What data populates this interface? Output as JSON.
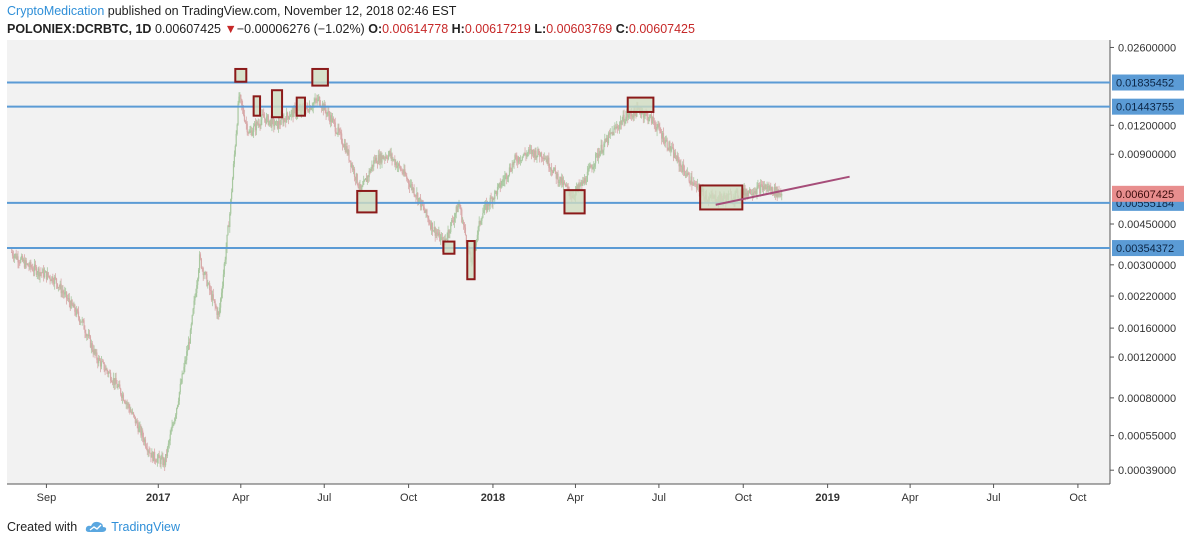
{
  "header": {
    "author": "CryptoMedication",
    "published": " published on TradingView.com, November 12, 2018 02:46 EST",
    "symbol": "POLONIEX:DCRBTC, 1D",
    "last": "0.00607425",
    "down_arrow": "▼",
    "change": "−0.00006276 (−1.02%)",
    "o_label": "O:",
    "o_value": "0.00614778",
    "h_label": "H:",
    "h_value": "0.00617219",
    "l_label": "L:",
    "l_value": "0.00603769",
    "c_label": "C:",
    "c_value": "0.00607425"
  },
  "footer": {
    "created_with": "Created with",
    "brand": "TradingView",
    "logo_icon": "tradingview-cloud-icon"
  },
  "colors": {
    "plot_bg": "#f2f2f2",
    "level_line": "#5b9bd5",
    "box_stroke": "#8b1a1a",
    "box_fill": "#cfdcc0",
    "trend_line": "#a64d79",
    "candle_up": "#a8c8a0",
    "candle_down": "#d8a8a8",
    "last_price_badge": "#e88e8e"
  },
  "chart_data": {
    "type": "candlestick",
    "scale": "log",
    "y_ticks": [
      "0.02600000",
      "0.01200000",
      "0.00900000",
      "0.00450000",
      "0.00300000",
      "0.00220000",
      "0.00160000",
      "0.00120000",
      "0.00080000",
      "0.00055000",
      "0.00039000"
    ],
    "x_ticks": [
      {
        "date": "2016-09-01",
        "label": "Sep",
        "bold": false
      },
      {
        "date": "2017-01-01",
        "label": "2017",
        "bold": true
      },
      {
        "date": "2017-04-01",
        "label": "Apr",
        "bold": false
      },
      {
        "date": "2017-07-01",
        "label": "Jul",
        "bold": false
      },
      {
        "date": "2017-10-01",
        "label": "Oct",
        "bold": false
      },
      {
        "date": "2018-01-01",
        "label": "2018",
        "bold": true
      },
      {
        "date": "2018-04-01",
        "label": "Apr",
        "bold": false
      },
      {
        "date": "2018-07-01",
        "label": "Jul",
        "bold": false
      },
      {
        "date": "2018-10-01",
        "label": "Oct",
        "bold": false
      },
      {
        "date": "2019-01-01",
        "label": "2019",
        "bold": true
      },
      {
        "date": "2019-04-01",
        "label": "Apr",
        "bold": false
      },
      {
        "date": "2019-07-01",
        "label": "Jul",
        "bold": false
      },
      {
        "date": "2019-10-01",
        "label": "Oct",
        "bold": false
      }
    ],
    "x_range": [
      "2016-07-20",
      "2019-11-05"
    ],
    "y_range": [
      0.00034,
      0.028
    ],
    "horizontal_levels": [
      {
        "value": 0.01835452,
        "label": "0.01835452"
      },
      {
        "value": 0.01443755,
        "label": "0.01443755"
      },
      {
        "value": 0.00555184,
        "label": "0.00555184"
      },
      {
        "value": 0.00354372,
        "label": "0.00354372"
      }
    ],
    "last_price": {
      "value": 0.00607425,
      "label": "0.00607425"
    },
    "price_path": [
      [
        "2016-07-25",
        0.0034
      ],
      [
        "2016-08-10",
        0.003
      ],
      [
        "2016-08-25",
        0.0028
      ],
      [
        "2016-09-10",
        0.0026
      ],
      [
        "2016-09-25",
        0.0021
      ],
      [
        "2016-10-10",
        0.0017
      ],
      [
        "2016-10-25",
        0.0012
      ],
      [
        "2016-11-10",
        0.001
      ],
      [
        "2016-11-25",
        0.0008
      ],
      [
        "2016-12-10",
        0.0006
      ],
      [
        "2016-12-25",
        0.00045
      ],
      [
        "2017-01-08",
        0.00042
      ],
      [
        "2017-01-20",
        0.0007
      ],
      [
        "2017-02-05",
        0.0015
      ],
      [
        "2017-02-15",
        0.0032
      ],
      [
        "2017-02-28",
        0.0022
      ],
      [
        "2017-03-08",
        0.0018
      ],
      [
        "2017-03-20",
        0.005
      ],
      [
        "2017-03-30",
        0.016
      ],
      [
        "2017-04-10",
        0.011
      ],
      [
        "2017-04-25",
        0.013
      ],
      [
        "2017-05-10",
        0.012
      ],
      [
        "2017-05-25",
        0.0135
      ],
      [
        "2017-06-10",
        0.014
      ],
      [
        "2017-06-25",
        0.0155
      ],
      [
        "2017-07-10",
        0.0125
      ],
      [
        "2017-07-25",
        0.0095
      ],
      [
        "2017-08-10",
        0.0062
      ],
      [
        "2017-08-25",
        0.0085
      ],
      [
        "2017-09-10",
        0.009
      ],
      [
        "2017-09-25",
        0.0075
      ],
      [
        "2017-10-10",
        0.006
      ],
      [
        "2017-10-25",
        0.0045
      ],
      [
        "2017-11-08",
        0.0037
      ],
      [
        "2017-11-25",
        0.0055
      ],
      [
        "2017-12-08",
        0.0031
      ],
      [
        "2017-12-20",
        0.005
      ],
      [
        "2018-01-08",
        0.0065
      ],
      [
        "2018-01-25",
        0.0085
      ],
      [
        "2018-02-10",
        0.0092
      ],
      [
        "2018-02-25",
        0.009
      ],
      [
        "2018-03-12",
        0.0072
      ],
      [
        "2018-03-28",
        0.006
      ],
      [
        "2018-04-10",
        0.0068
      ],
      [
        "2018-04-25",
        0.009
      ],
      [
        "2018-05-10",
        0.011
      ],
      [
        "2018-05-25",
        0.013
      ],
      [
        "2018-06-10",
        0.014
      ],
      [
        "2018-06-25",
        0.0125
      ],
      [
        "2018-07-10",
        0.01
      ],
      [
        "2018-07-25",
        0.008
      ],
      [
        "2018-08-10",
        0.0065
      ],
      [
        "2018-08-25",
        0.0058
      ],
      [
        "2018-09-10",
        0.0058
      ],
      [
        "2018-09-25",
        0.006
      ],
      [
        "2018-10-10",
        0.0063
      ],
      [
        "2018-10-25",
        0.0065
      ],
      [
        "2018-11-12",
        0.00607
      ]
    ],
    "highlight_boxes": [
      {
        "x0": "2017-03-26",
        "x1": "2017-04-07",
        "y0": 0.0185,
        "y1": 0.021
      },
      {
        "x0": "2017-04-15",
        "x1": "2017-04-22",
        "y0": 0.0132,
        "y1": 0.016
      },
      {
        "x0": "2017-05-05",
        "x1": "2017-05-16",
        "y0": 0.013,
        "y1": 0.017
      },
      {
        "x0": "2017-06-01",
        "x1": "2017-06-10",
        "y0": 0.0132,
        "y1": 0.0158
      },
      {
        "x0": "2017-06-18",
        "x1": "2017-07-05",
        "y0": 0.0178,
        "y1": 0.021
      },
      {
        "x0": "2017-08-06",
        "x1": "2017-08-27",
        "y0": 0.00505,
        "y1": 0.00625
      },
      {
        "x0": "2017-11-08",
        "x1": "2017-11-20",
        "y0": 0.00335,
        "y1": 0.00378
      },
      {
        "x0": "2017-12-04",
        "x1": "2017-12-12",
        "y0": 0.0026,
        "y1": 0.0038
      },
      {
        "x0": "2018-03-20",
        "x1": "2018-04-11",
        "y0": 0.005,
        "y1": 0.0063
      },
      {
        "x0": "2018-05-28",
        "x1": "2018-06-25",
        "y0": 0.0137,
        "y1": 0.0158
      },
      {
        "x0": "2018-08-15",
        "x1": "2018-09-30",
        "y0": 0.0052,
        "y1": 0.0066
      }
    ],
    "trend_line": {
      "start": [
        "2018-09-01",
        0.00545
      ],
      "end": [
        "2019-01-25",
        0.0072
      ]
    }
  }
}
